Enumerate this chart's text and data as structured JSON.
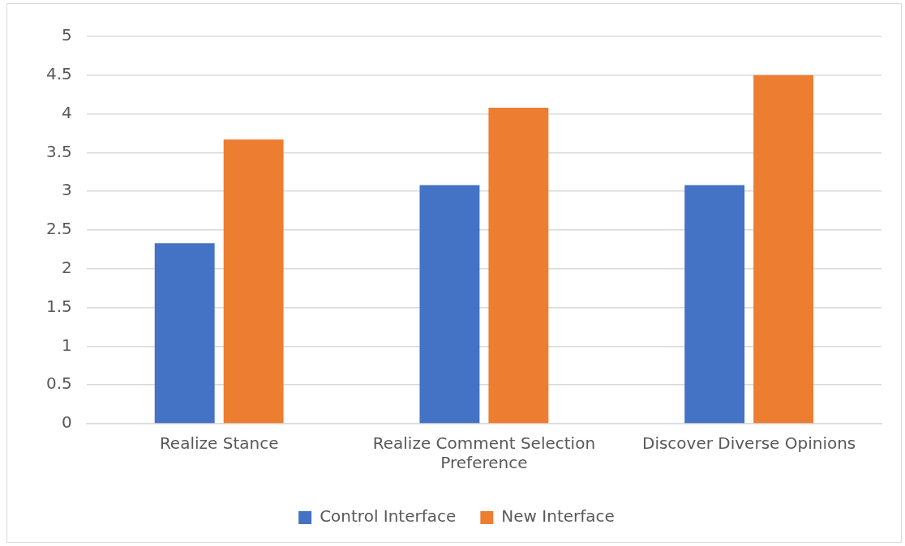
{
  "chart_data": {
    "type": "bar",
    "categories": [
      "Realize Stance",
      "Realize Comment Selection Preference",
      "Discover Diverse Opinions"
    ],
    "series": [
      {
        "name": "Control Interface",
        "color": "#4472c4",
        "values": [
          2.33,
          3.08,
          3.08
        ]
      },
      {
        "name": "New Interface",
        "color": "#ed7d31",
        "values": [
          3.67,
          4.08,
          4.5
        ]
      }
    ],
    "ylim": [
      0,
      5
    ],
    "yticks": [
      0,
      0.5,
      1,
      1.5,
      2,
      2.5,
      3,
      3.5,
      4,
      4.5,
      5
    ],
    "grid": "y",
    "legend": "bottom"
  }
}
